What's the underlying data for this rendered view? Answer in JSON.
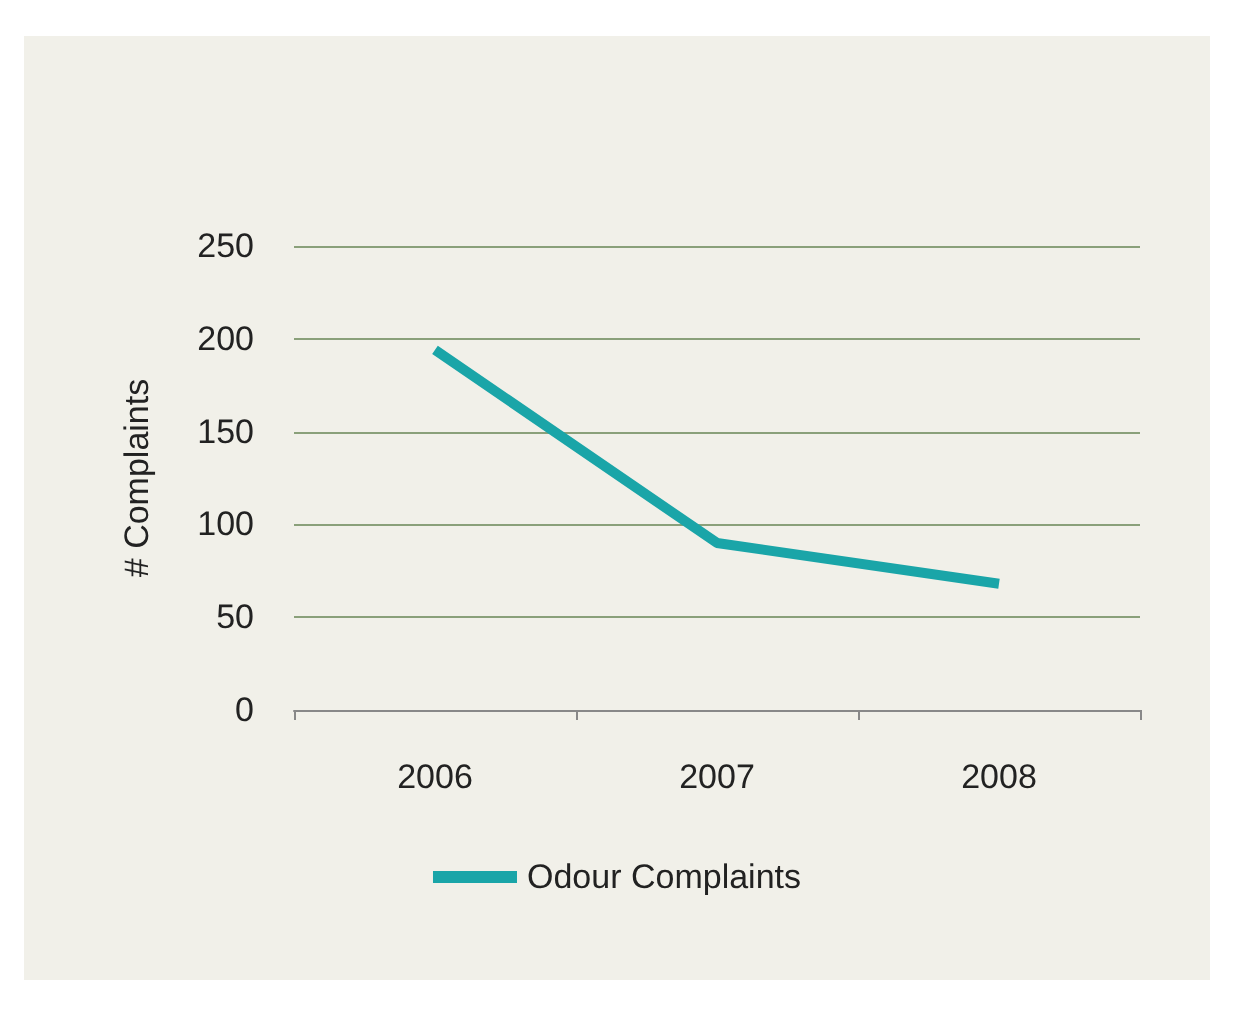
{
  "chart_data": {
    "type": "line",
    "ylabel": "# Complaints",
    "categories": [
      "2006",
      "2007",
      "2008"
    ],
    "series": [
      {
        "name": "Odour Complaints",
        "color": "#1aa5a8",
        "values": [
          194,
          90,
          68
        ]
      }
    ],
    "ylim": [
      0,
      250
    ],
    "yticks": [
      0,
      50,
      100,
      150,
      200,
      250
    ],
    "grid": "y",
    "legend": "bottom",
    "marker": "none"
  }
}
